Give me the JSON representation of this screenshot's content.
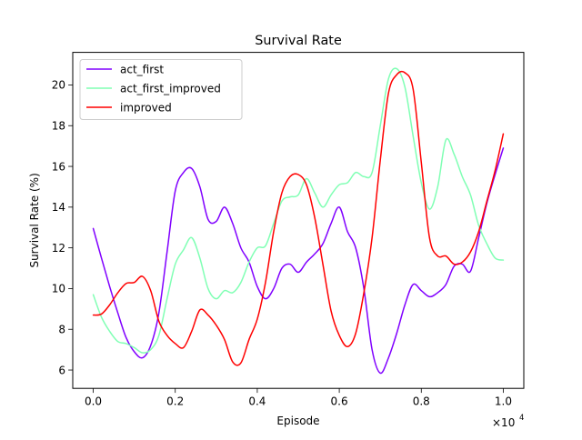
{
  "chart_data": {
    "type": "line",
    "title": "Survival Rate",
    "xlabel": "Episode",
    "ylabel": "Survival Rate (%)",
    "x_offset_text": "×10",
    "x_offset_exponent": "4",
    "xlim": [
      -0.05,
      1.05
    ],
    "ylim": [
      5.1,
      21.6
    ],
    "x_ticks": [
      0.0,
      0.2,
      0.4,
      0.6,
      0.8,
      1.0
    ],
    "x_tick_labels": [
      "0.0",
      "0.2",
      "0.4",
      "0.6",
      "0.8",
      "1.0"
    ],
    "y_ticks": [
      6,
      8,
      10,
      12,
      14,
      16,
      18,
      20
    ],
    "y_tick_labels": [
      "6",
      "8",
      "10",
      "12",
      "14",
      "16",
      "18",
      "20"
    ],
    "grid": false,
    "legend_position": "top-left",
    "series": [
      {
        "name": "act_first",
        "color": "#8000ff",
        "x": [
          0.0,
          0.02,
          0.04,
          0.06,
          0.08,
          0.1,
          0.12,
          0.14,
          0.16,
          0.18,
          0.2,
          0.22,
          0.24,
          0.26,
          0.28,
          0.3,
          0.32,
          0.34,
          0.36,
          0.38,
          0.4,
          0.42,
          0.44,
          0.46,
          0.48,
          0.5,
          0.52,
          0.54,
          0.56,
          0.58,
          0.6,
          0.62,
          0.64,
          0.66,
          0.68,
          0.7,
          0.72,
          0.74,
          0.76,
          0.78,
          0.8,
          0.82,
          0.84,
          0.86,
          0.88,
          0.9,
          0.92,
          0.94,
          0.96,
          0.98,
          1.0
        ],
        "y": [
          12.95,
          11.5,
          10.1,
          8.8,
          7.6,
          6.9,
          6.6,
          7.2,
          8.8,
          11.8,
          14.8,
          15.7,
          15.9,
          15.0,
          13.4,
          13.3,
          14.0,
          13.2,
          12.0,
          11.3,
          10.1,
          9.5,
          10.0,
          11.0,
          11.2,
          10.8,
          11.3,
          11.7,
          12.2,
          13.2,
          14.0,
          12.8,
          12.0,
          10.0,
          7.0,
          5.85,
          6.6,
          7.8,
          9.2,
          10.2,
          9.9,
          9.6,
          9.8,
          10.2,
          11.1,
          11.2,
          10.85,
          12.5,
          14.2,
          15.6,
          16.9
        ]
      },
      {
        "name": "act_first_improved",
        "color": "#80ffb4",
        "x": [
          0.0,
          0.02,
          0.04,
          0.06,
          0.08,
          0.1,
          0.12,
          0.14,
          0.16,
          0.18,
          0.2,
          0.22,
          0.24,
          0.26,
          0.28,
          0.3,
          0.32,
          0.34,
          0.36,
          0.38,
          0.4,
          0.42,
          0.44,
          0.46,
          0.48,
          0.5,
          0.52,
          0.54,
          0.56,
          0.58,
          0.6,
          0.62,
          0.64,
          0.66,
          0.68,
          0.7,
          0.72,
          0.74,
          0.76,
          0.78,
          0.8,
          0.82,
          0.84,
          0.86,
          0.88,
          0.9,
          0.92,
          0.94,
          0.96,
          0.98,
          1.0
        ],
        "y": [
          9.7,
          8.6,
          7.9,
          7.4,
          7.3,
          7.1,
          6.85,
          7.0,
          7.7,
          9.5,
          11.2,
          11.9,
          12.5,
          11.5,
          10.0,
          9.5,
          9.9,
          9.8,
          10.3,
          11.3,
          12.0,
          12.1,
          13.2,
          14.3,
          14.5,
          14.6,
          15.4,
          14.7,
          14.0,
          14.6,
          15.1,
          15.2,
          15.7,
          15.5,
          15.7,
          18.0,
          20.3,
          20.8,
          19.9,
          17.5,
          15.2,
          13.9,
          15.0,
          17.3,
          16.6,
          15.5,
          14.6,
          13.1,
          12.2,
          11.5,
          11.4
        ]
      },
      {
        "name": "improved",
        "color": "#ff0000",
        "x": [
          0.0,
          0.02,
          0.04,
          0.06,
          0.08,
          0.1,
          0.12,
          0.14,
          0.16,
          0.18,
          0.2,
          0.22,
          0.24,
          0.26,
          0.28,
          0.3,
          0.32,
          0.34,
          0.36,
          0.38,
          0.4,
          0.42,
          0.44,
          0.46,
          0.48,
          0.5,
          0.52,
          0.54,
          0.56,
          0.58,
          0.6,
          0.62,
          0.64,
          0.66,
          0.68,
          0.7,
          0.72,
          0.74,
          0.76,
          0.78,
          0.8,
          0.82,
          0.84,
          0.86,
          0.88,
          0.9,
          0.92,
          0.94,
          0.96,
          0.98,
          1.0
        ],
        "y": [
          8.7,
          8.75,
          9.2,
          9.8,
          10.25,
          10.3,
          10.6,
          9.9,
          8.4,
          7.7,
          7.3,
          7.1,
          7.9,
          8.95,
          8.7,
          8.2,
          7.5,
          6.4,
          6.35,
          7.5,
          8.5,
          10.3,
          12.8,
          14.7,
          15.5,
          15.6,
          15.1,
          13.5,
          11.2,
          8.9,
          7.7,
          7.15,
          7.8,
          9.8,
          12.5,
          16.3,
          19.6,
          20.5,
          20.6,
          19.8,
          16.2,
          12.5,
          11.6,
          11.6,
          11.2,
          11.3,
          11.8,
          12.8,
          14.3,
          15.8,
          17.6
        ]
      }
    ]
  }
}
